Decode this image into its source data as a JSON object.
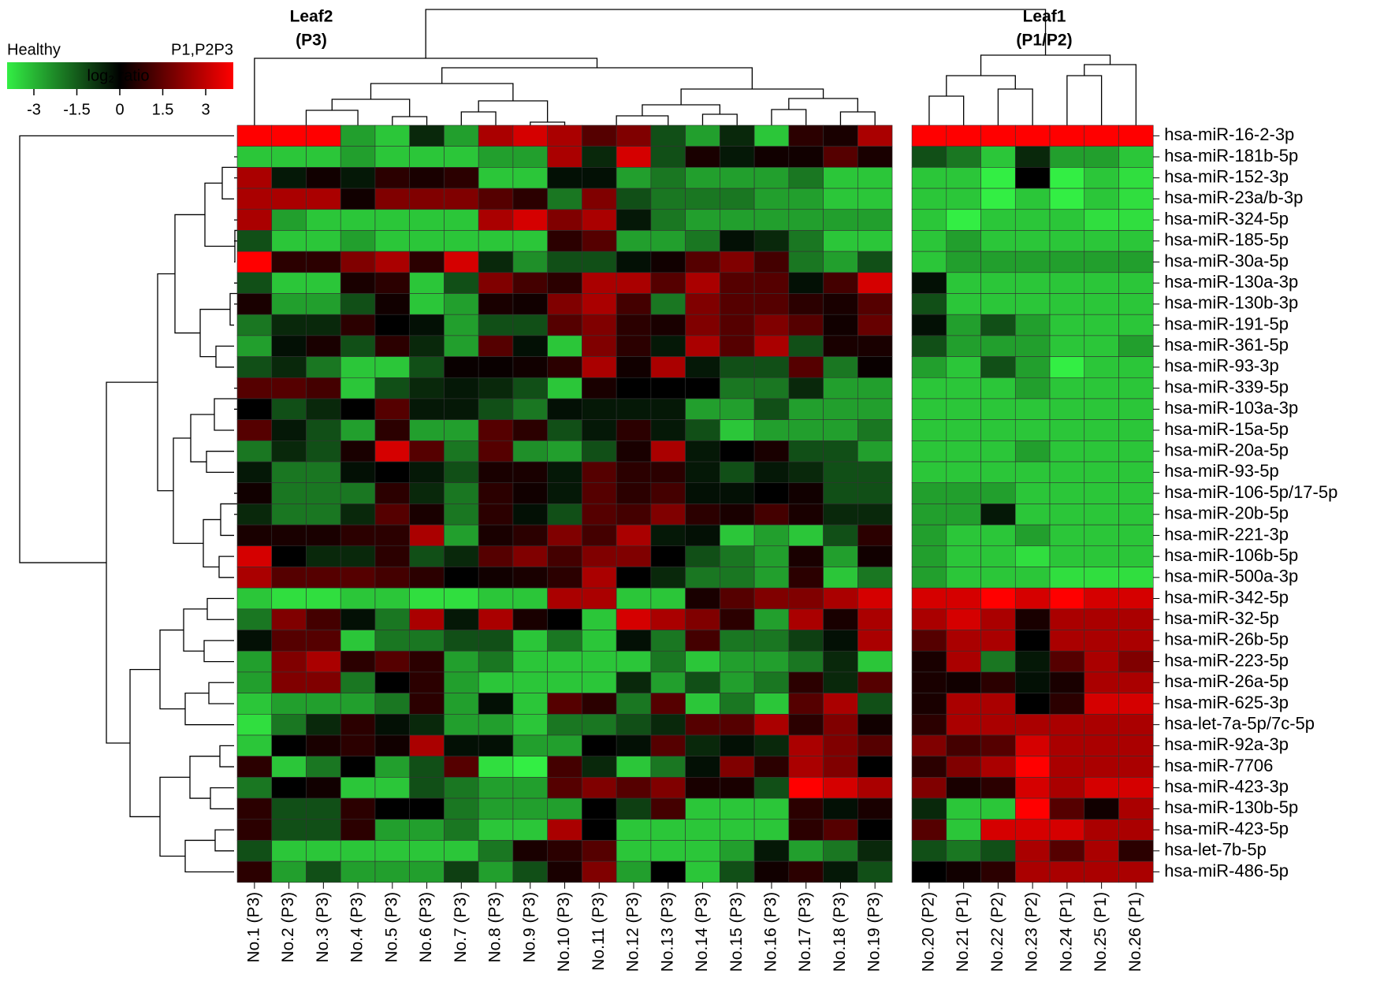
{
  "chart_data": {
    "type": "heatmap",
    "cluster_labels": [
      [
        "Leaf2",
        "(P3)"
      ],
      [
        "Leaf1",
        "(P1/P2)"
      ]
    ],
    "colorbar": {
      "label_low": "Healthy",
      "label_high": "P1,P2P3",
      "label": "log₂ ratio",
      "lim": [
        -3,
        3
      ],
      "ticks": [
        -3,
        -1.5,
        0,
        1.5,
        3
      ],
      "colors": {
        "low": "#33ee44",
        "mid": "#000000",
        "high": "#ff0000"
      }
    },
    "columns": [
      "No.1 (P3)",
      "No.2 (P3)",
      "No.3 (P3)",
      "No.4 (P3)",
      "No.5 (P3)",
      "No.6 (P3)",
      "No.7 (P3)",
      "No.8 (P3)",
      "No.9 (P3)",
      "No.10 (P3)",
      "No.11 (P3)",
      "No.12 (P3)",
      "No.13 (P3)",
      "No.14 (P3)",
      "No.15 (P3)",
      "No.16 (P3)",
      "No.17 (P3)",
      "No.18 (P3)",
      "No.19 (P3)",
      "No.20 (P2)",
      "No.21 (P1)",
      "No.22 (P2)",
      "No.23 (P2)",
      "No.24 (P1)",
      "No.25 (P1)",
      "No.26 (P1)"
    ],
    "rows": [
      "hsa-miR-16-2-3p",
      "hsa-miR-181b-5p",
      "hsa-miR-152-3p",
      "hsa-miR-23a/b-3p",
      "hsa-miR-324-5p",
      "hsa-miR-185-5p",
      "hsa-miR-30a-5p",
      "hsa-miR-130a-3p",
      "hsa-miR-130b-3p",
      "hsa-miR-191-5p",
      "hsa-miR-361-5p",
      "hsa-miR-93-3p",
      "hsa-miR-339-5p",
      "hsa-miR-103a-3p",
      "hsa-miR-15a-5p",
      "hsa-miR-20a-5p",
      "hsa-miR-93-5p",
      "hsa-miR-106-5p/17-5p",
      "hsa-miR-20b-5p",
      "hsa-miR-221-3p",
      "hsa-miR-106b-5p",
      "hsa-miR-500a-3p",
      "hsa-miR-342-5p",
      "hsa-miR-32-5p",
      "hsa-miR-26b-5p",
      "hsa-miR-223-5p",
      "hsa-miR-26a-5p",
      "hsa-miR-625-3p",
      "hsa-let-7a-5p/7c-5p",
      "hsa-miR-92a-3p",
      "hsa-miR-7706",
      "hsa-miR-423-3p",
      "hsa-miR-130b-5p",
      "hsa-miR-423-5p",
      "hsa-let-7b-5p",
      "hsa-miR-486-5p"
    ],
    "values": [
      [
        3,
        3,
        3,
        -2,
        -2.5,
        -0.5,
        -2,
        2,
        2.5,
        2,
        1,
        1.5,
        -1,
        -2,
        -0.5,
        -2.5,
        0.5,
        0.3,
        2,
        3,
        3,
        3,
        3,
        3,
        3,
        3
      ],
      [
        -2.5,
        -2.5,
        -2.5,
        -2,
        -2.5,
        -2.5,
        -2.5,
        -2,
        -2,
        2,
        -0.5,
        2.5,
        -1,
        0.3,
        -0.3,
        0.2,
        0.2,
        1,
        0.3,
        -1,
        -1.5,
        -2.5,
        -0.5,
        -2,
        -2,
        -2.5
      ],
      [
        2,
        -0.3,
        0.2,
        -0.3,
        0.5,
        0.3,
        0.5,
        -2.5,
        -2.5,
        -0.2,
        -0.2,
        -2,
        -1.5,
        -2,
        -2,
        -2,
        -1.5,
        -2.5,
        -2.5,
        -2.5,
        -2.5,
        -3,
        0,
        -3,
        -2.5,
        -2.8
      ],
      [
        2,
        2,
        2,
        0.2,
        1.5,
        1.5,
        1.5,
        1,
        0.5,
        -1.5,
        1.5,
        -1,
        -1.5,
        -1.5,
        -1.5,
        -2,
        -2,
        -2.5,
        -2.5,
        -2.5,
        -2.5,
        -3,
        -2.5,
        -3,
        -2.5,
        -2.8
      ],
      [
        2,
        -2,
        -2.5,
        -2.5,
        -2.5,
        -2.5,
        -2.5,
        2,
        2.5,
        1.5,
        2,
        -0.3,
        -1.5,
        -2,
        -2,
        -2,
        -2,
        -2,
        -2,
        -2.5,
        -3,
        -2.5,
        -2.5,
        -2.5,
        -2.8,
        -2.8
      ],
      [
        -1,
        -2.5,
        -2.5,
        -2,
        -2.5,
        -2.5,
        -2.5,
        -2.5,
        -2.5,
        0.5,
        1,
        -2,
        -2,
        -1.5,
        -0.2,
        -0.5,
        -1.5,
        -2.5,
        -2.5,
        -2.5,
        -2,
        -2.5,
        -2.5,
        -2.5,
        -2.5,
        -2.5
      ],
      [
        3,
        0.5,
        0.5,
        1.5,
        2,
        0.5,
        2.5,
        -0.5,
        -1.8,
        -1,
        -1,
        -0.2,
        0.2,
        1,
        1.5,
        0.8,
        -1.5,
        -2,
        -1,
        -2.5,
        -2,
        -2,
        -2,
        -2,
        -2,
        -2
      ],
      [
        -1,
        -2.5,
        -2.5,
        0.3,
        0.5,
        -2.5,
        -1,
        1.5,
        0.8,
        0.5,
        2,
        2,
        1,
        2,
        1,
        1,
        -0.2,
        0.8,
        2.5,
        -0.2,
        -2.5,
        -2.5,
        -2.5,
        -2.5,
        -2.5,
        -2.5
      ],
      [
        0.3,
        -2,
        -2,
        -1,
        0.2,
        -2.5,
        -2,
        0.3,
        0.2,
        1.5,
        2,
        0.8,
        -1.5,
        1.5,
        1,
        1,
        0.5,
        0.3,
        1,
        -1,
        -2.5,
        -2.5,
        -2.5,
        -2.5,
        -2.5,
        -2.5
      ],
      [
        -1.5,
        -0.5,
        -0.5,
        0.5,
        0,
        -0.2,
        -2,
        -1,
        -1,
        1,
        1.5,
        0.5,
        0.3,
        1.5,
        1,
        1.5,
        1,
        0.2,
        1.2,
        -0.2,
        -2,
        -1,
        -2,
        -2.5,
        -2.5,
        -2.5
      ],
      [
        -2,
        -0.2,
        0.3,
        -1,
        0.5,
        -0.5,
        -2,
        1,
        -0.2,
        -2.5,
        1.5,
        0.5,
        -0.3,
        2,
        1,
        2,
        -1,
        0.3,
        0.3,
        -1,
        -2,
        -2,
        -2,
        -2.5,
        -2.5,
        -2
      ],
      [
        -1,
        -0.5,
        -1.5,
        -2.5,
        -2.5,
        -1,
        0.1,
        0.1,
        0.2,
        0.5,
        2,
        0.2,
        2,
        -0.3,
        -1,
        -1,
        1,
        -1.5,
        0.1,
        -2,
        -2.5,
        -1,
        -2,
        -3,
        -2.5,
        -2.5
      ],
      [
        1,
        1,
        0.8,
        -2.5,
        -1,
        -0.5,
        -0.3,
        -0.5,
        -1,
        -2.5,
        0.3,
        0,
        0,
        0,
        -1.5,
        -1.5,
        -0.5,
        -2,
        -2,
        -2.5,
        -2.5,
        -2.5,
        -2,
        -2.5,
        -2.5,
        -2.5
      ],
      [
        0,
        -1,
        -0.5,
        0,
        1,
        -0.3,
        -0.3,
        -1,
        -1.5,
        -0.2,
        -0.3,
        -0.3,
        -0.3,
        -2,
        -2,
        -1,
        -2,
        -2,
        -2,
        -2.5,
        -2.5,
        -2.5,
        -2.5,
        -2.5,
        -2.5,
        -2.5
      ],
      [
        1,
        -0.3,
        -1,
        -2,
        0.5,
        -2,
        -2,
        1,
        0.5,
        -1,
        -0.3,
        0.5,
        -0.3,
        -1,
        -2.5,
        -2,
        -2,
        -2,
        -1.5,
        -2.5,
        -2.5,
        -2.5,
        -2.5,
        -2.5,
        -2.5,
        -2.5
      ],
      [
        -1.5,
        -0.5,
        -1,
        0.3,
        2.5,
        1,
        -1.5,
        1,
        -1.8,
        -2,
        -1,
        0.3,
        2,
        -0.3,
        0,
        0.3,
        -1,
        -1,
        -2,
        -2.5,
        -2.5,
        -2.5,
        -2,
        -2.5,
        -2.5,
        -2.5
      ],
      [
        -0.3,
        -1.5,
        -1.5,
        -0.2,
        0,
        -0.3,
        -1,
        0.3,
        0.3,
        -0.3,
        1,
        0.5,
        0.5,
        -0.3,
        -1,
        -0.3,
        -0.5,
        -1,
        -1,
        -2.5,
        -2.5,
        -2.5,
        -2.5,
        -2.5,
        -2.5,
        -2.5
      ],
      [
        0.2,
        -1.5,
        -1.5,
        -1.5,
        0.5,
        -0.5,
        -1.5,
        0.5,
        0.2,
        -0.3,
        1,
        0.5,
        0.8,
        -0.2,
        -0.2,
        0,
        0.2,
        -1,
        -1,
        -2,
        -2,
        -2,
        -2.5,
        -2.5,
        -2.5,
        -2.5
      ],
      [
        -0.5,
        -1.5,
        -1.5,
        -0.5,
        1,
        0.3,
        -1.5,
        0.5,
        -0.2,
        -1,
        1,
        0.8,
        1.5,
        0.5,
        0.3,
        0.8,
        0.3,
        -0.5,
        -0.5,
        -2,
        -2,
        -0.3,
        -2.5,
        -2.5,
        -2.5,
        -2.5
      ],
      [
        0.3,
        0.3,
        0.3,
        0.5,
        0.5,
        2,
        -2,
        0.3,
        0.5,
        1.5,
        0.8,
        2,
        -0.3,
        -0.2,
        -2.5,
        -2,
        -2.5,
        -1,
        0.5,
        -2,
        -2.5,
        -2.5,
        -2,
        -2.5,
        -2.5,
        -2.5
      ],
      [
        2.5,
        0,
        -0.5,
        -0.5,
        0.5,
        -1,
        -0.5,
        1,
        1.5,
        0.8,
        1.5,
        1.5,
        0,
        -1,
        -1.5,
        -2,
        0.3,
        -2,
        0.2,
        -2,
        -2.5,
        -2.5,
        -2.8,
        -2.5,
        -2.5,
        -2.5
      ],
      [
        2,
        1,
        1,
        1,
        0.8,
        0.5,
        0,
        0.2,
        0.3,
        0.5,
        2,
        0,
        -0.5,
        -1.5,
        -1.5,
        -2,
        0.5,
        -2.5,
        -1.5,
        -2,
        -2.5,
        -2.5,
        -2.5,
        -2.8,
        -2.8,
        -2.8
      ],
      [
        -2.5,
        -2.8,
        -2.8,
        -2.5,
        -2.5,
        -2.8,
        -2.8,
        -2.5,
        -2.5,
        2,
        2,
        -2.5,
        -2.5,
        0.3,
        1,
        1.5,
        1.5,
        2,
        2.5,
        2.5,
        2.5,
        3,
        2.5,
        3,
        2.5,
        2.5
      ],
      [
        -1.5,
        1.5,
        0.8,
        -0.2,
        -1.5,
        2,
        -0.3,
        2,
        0.3,
        0,
        -2.5,
        2.5,
        2,
        1.5,
        0.5,
        -2,
        2,
        0.3,
        2,
        2,
        2.5,
        2,
        0.3,
        2,
        2,
        2
      ],
      [
        -0.2,
        1,
        1,
        -2.5,
        -1.5,
        -1.5,
        -1,
        -1,
        -2.5,
        -1.5,
        -2.5,
        -0.2,
        -1.5,
        0.8,
        -1.5,
        -1.5,
        -0.8,
        -0.2,
        2,
        1,
        2,
        2,
        0,
        2,
        2,
        2
      ],
      [
        -2,
        1.5,
        2,
        0.5,
        1,
        0.5,
        -2,
        -1.5,
        -2.5,
        -2.5,
        -2.5,
        -2.5,
        -1.5,
        -2.5,
        -2,
        -2,
        -1.5,
        -0.5,
        -2.5,
        0.3,
        2,
        -1.5,
        -0.3,
        1,
        2,
        1.5
      ],
      [
        -2,
        1.5,
        1.5,
        -1.5,
        0,
        0.5,
        -2,
        -2.5,
        -2.5,
        -2.5,
        -2.5,
        -0.5,
        -2,
        -1,
        -2,
        -1.5,
        0.5,
        -0.5,
        1,
        0.3,
        0.2,
        0.5,
        -0.2,
        0.3,
        2,
        2
      ],
      [
        -2.5,
        -2,
        -2,
        -2,
        -1.5,
        0.5,
        -2,
        -0.2,
        -2.5,
        1,
        0.5,
        -1.5,
        1,
        -2.5,
        -1.5,
        -2.5,
        1,
        2,
        -1,
        0.3,
        2,
        2,
        0,
        0.5,
        2.5,
        2.5
      ],
      [
        -2.8,
        -1.5,
        -0.5,
        0.5,
        -0.2,
        -0.5,
        -2,
        -2,
        -2.5,
        -1.5,
        -1.5,
        -1,
        -0.5,
        1,
        1,
        2,
        0.5,
        1.5,
        0.2,
        0.5,
        2,
        2,
        2,
        2,
        2,
        2
      ],
      [
        -2.5,
        0,
        0.3,
        0.5,
        0.2,
        2,
        -0.2,
        -0.2,
        -2,
        -2,
        0,
        -0.2,
        1,
        -0.5,
        -0.2,
        -0.5,
        2,
        1.5,
        1,
        1.5,
        0.8,
        1,
        2.5,
        2,
        2,
        2
      ],
      [
        0.5,
        -2.5,
        -1.5,
        0,
        -2,
        -1,
        1,
        -2.8,
        -3,
        0.8,
        -0.5,
        -2.5,
        -1.5,
        -0.2,
        1.5,
        0.5,
        2,
        1.5,
        0,
        0.5,
        1.5,
        2,
        3,
        2,
        2,
        2
      ],
      [
        -1.5,
        0,
        0.2,
        -2.5,
        -2.5,
        -1,
        -1.5,
        -2,
        -2,
        1,
        1.5,
        1,
        1.5,
        0.3,
        0.3,
        -1,
        3,
        2.5,
        2,
        1.5,
        0.3,
        0.5,
        2.5,
        2,
        2.5,
        2.5
      ],
      [
        0.5,
        -1,
        -1,
        0.5,
        0,
        0,
        -1.5,
        -2,
        -2,
        -2,
        0,
        -0.8,
        0.8,
        -2.5,
        -2.5,
        -2.5,
        0.5,
        -0.2,
        0.3,
        -0.5,
        -2.5,
        -2.5,
        3,
        1,
        0.2,
        2
      ],
      [
        0.5,
        -1,
        -1,
        0.5,
        -2,
        -2,
        -1.5,
        -2.5,
        -2.5,
        2,
        0,
        -2.5,
        -2.5,
        -2.5,
        -2.5,
        -2.5,
        0.5,
        1,
        0,
        1,
        -2.5,
        2.5,
        2.5,
        2.5,
        2,
        2
      ],
      [
        -1,
        -2.5,
        -2.5,
        -2.5,
        -2.5,
        -2.5,
        -2.5,
        -1.5,
        0.3,
        0.5,
        1,
        -2.5,
        -2.5,
        -2.5,
        -2,
        -0.3,
        -2,
        -1.5,
        -0.5,
        -1,
        -1.5,
        -1,
        2,
        1,
        2,
        0.5
      ],
      [
        0.5,
        -2,
        -1,
        -2,
        -2,
        -2,
        -0.8,
        -2,
        -1,
        0.3,
        1.5,
        -2,
        0,
        -2.5,
        -1,
        0.2,
        0.5,
        -0.3,
        -1,
        0,
        0.2,
        0.5,
        2,
        2,
        2,
        2
      ]
    ]
  }
}
